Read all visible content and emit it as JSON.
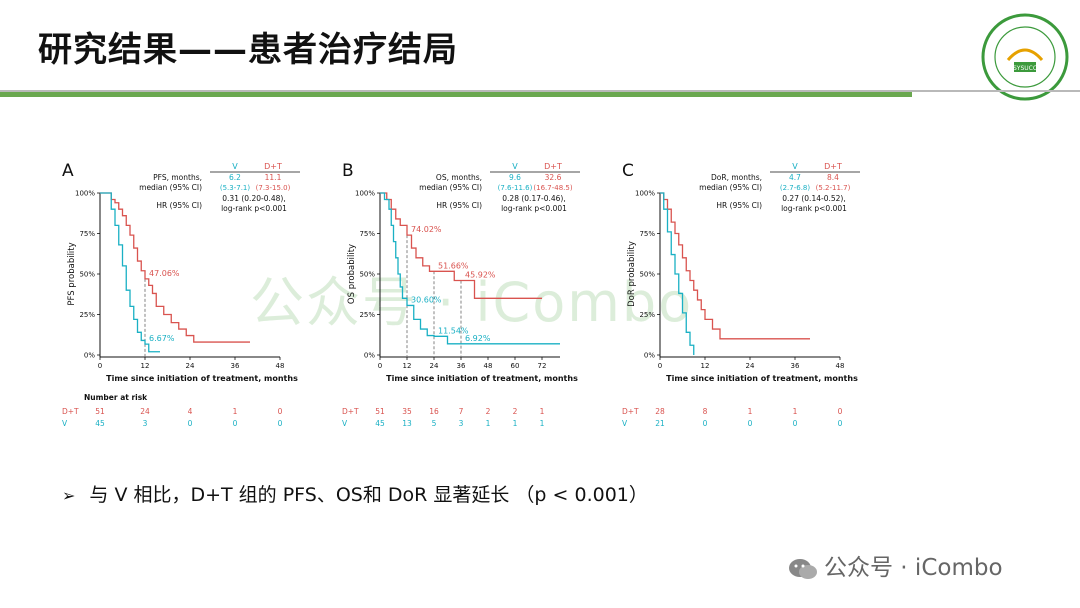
{
  "header": {
    "title": "研究结果——患者治疗结局"
  },
  "logo": {
    "text_top": "中山大学附属肿瘤医院",
    "text_mid": "SYSUCC",
    "text_bottom": "SUN YAT-SEN UNIVERSITY CANCER CENTER"
  },
  "watermark": {
    "center": "公众号 · iCombo",
    "footer": "公众号 · iCombo"
  },
  "bullet": {
    "marker": "➢",
    "text": "与 V 相比，D+T 组的 PFS、OS和 DoR 显著延长 （p < 0.001）"
  },
  "colors": {
    "dt": "#d9534f",
    "v": "#1ab0c4",
    "green": "#6aa84f"
  },
  "chart_data": [
    {
      "type": "line",
      "panel_letter": "A",
      "ylabel": "PFS probability",
      "xlabel": "Time since initiation of treatment, months",
      "xticks": [
        0,
        12,
        24,
        36,
        48
      ],
      "xlim": [
        0,
        48
      ],
      "yticks": [
        "0%",
        "25%",
        "50%",
        "75%",
        "100%"
      ],
      "ylim": [
        0,
        1
      ],
      "legend_table": {
        "headers": [
          "V",
          "D+T"
        ],
        "rows": [
          {
            "label1": "PFS, months,",
            "label2": "median (95% CI)",
            "v": "6.2",
            "v_ci": "(5.3-7.1)",
            "dt": "11.1",
            "dt_ci": "(7.3-15.0)"
          }
        ],
        "hr_label": "HR (95% CI)",
        "hr_value": "0.31 (0.20-0.48),",
        "logrank": "log-rank p<0.001"
      },
      "annotations": [
        {
          "text": "47.06%",
          "series": "D+T",
          "x": 12,
          "y": 0.47
        },
        {
          "text": "6.67%",
          "series": "V",
          "x": 12,
          "y": 0.067
        }
      ],
      "series": [
        {
          "name": "D+T",
          "step": [
            [
              0,
              1
            ],
            [
              2,
              1
            ],
            [
              3,
              0.96
            ],
            [
              4,
              0.94
            ],
            [
              5,
              0.9
            ],
            [
              6,
              0.86
            ],
            [
              7,
              0.8
            ],
            [
              8,
              0.74
            ],
            [
              9,
              0.66
            ],
            [
              10,
              0.58
            ],
            [
              11,
              0.52
            ],
            [
              12,
              0.47
            ],
            [
              13,
              0.43
            ],
            [
              14,
              0.38
            ],
            [
              15,
              0.3
            ],
            [
              17,
              0.25
            ],
            [
              19,
              0.2
            ],
            [
              21,
              0.16
            ],
            [
              23,
              0.12
            ],
            [
              25,
              0.08
            ],
            [
              30,
              0.08
            ],
            [
              40,
              0.08
            ]
          ]
        },
        {
          "name": "V",
          "step": [
            [
              0,
              1
            ],
            [
              2,
              1
            ],
            [
              3,
              0.9
            ],
            [
              4,
              0.8
            ],
            [
              5,
              0.68
            ],
            [
              6,
              0.55
            ],
            [
              7,
              0.4
            ],
            [
              8,
              0.3
            ],
            [
              9,
              0.22
            ],
            [
              10,
              0.14
            ],
            [
              11,
              0.09
            ],
            [
              12,
              0.067
            ],
            [
              13,
              0.02
            ],
            [
              16,
              0.02
            ]
          ]
        }
      ],
      "risk_table": {
        "title": "Number at risk",
        "x": [
          0,
          12,
          24,
          36,
          48
        ],
        "rows": [
          {
            "label": "D+T",
            "values": [
              "51",
              "24",
              "4",
              "1",
              "0"
            ]
          },
          {
            "label": "V",
            "values": [
              "45",
              "3",
              "0",
              "0",
              "0"
            ]
          }
        ]
      }
    },
    {
      "type": "line",
      "panel_letter": "B",
      "ylabel": "OS probability",
      "xlabel": "Time since initiation of treatment, months",
      "xticks": [
        0,
        12,
        24,
        36,
        48,
        60,
        72
      ],
      "xlim": [
        0,
        80
      ],
      "yticks": [
        "0%",
        "25%",
        "50%",
        "75%",
        "100%"
      ],
      "ylim": [
        0,
        1
      ],
      "legend_table": {
        "headers": [
          "V",
          "D+T"
        ],
        "rows": [
          {
            "label1": "OS, months,",
            "label2": "median (95% CI)",
            "v": "9.6",
            "v_ci": "(7.6-11.6)",
            "dt": "32.6",
            "dt_ci": "(16.7-48.5)"
          }
        ],
        "hr_label": "HR (95% CI)",
        "hr_value": "0.28 (0.17-0.46),",
        "logrank": "log-rank p<0.001"
      },
      "annotations": [
        {
          "text": "74.02%",
          "series": "D+T",
          "x": 12,
          "y": 0.74
        },
        {
          "text": "51.66%",
          "series": "D+T",
          "x": 24,
          "y": 0.5166
        },
        {
          "text": "45.92%",
          "series": "D+T",
          "x": 36,
          "y": 0.4592
        },
        {
          "text": "30.60%",
          "series": "V",
          "x": 12,
          "y": 0.306
        },
        {
          "text": "11.54%",
          "series": "V",
          "x": 24,
          "y": 0.1154
        },
        {
          "text": "6.92%",
          "series": "V",
          "x": 36,
          "y": 0.0692
        }
      ],
      "series": [
        {
          "name": "D+T",
          "step": [
            [
              0,
              1
            ],
            [
              3,
              0.96
            ],
            [
              5,
              0.9
            ],
            [
              7,
              0.84
            ],
            [
              9,
              0.8
            ],
            [
              12,
              0.74
            ],
            [
              14,
              0.66
            ],
            [
              16,
              0.6
            ],
            [
              19,
              0.55
            ],
            [
              22,
              0.5166
            ],
            [
              30,
              0.5166
            ],
            [
              33,
              0.46
            ],
            [
              40,
              0.46
            ],
            [
              42,
              0.35
            ],
            [
              70,
              0.35
            ],
            [
              72,
              0.35
            ]
          ]
        },
        {
          "name": "V",
          "step": [
            [
              0,
              1
            ],
            [
              2,
              0.96
            ],
            [
              4,
              0.9
            ],
            [
              5,
              0.8
            ],
            [
              6,
              0.7
            ],
            [
              7,
              0.6
            ],
            [
              8,
              0.5
            ],
            [
              9,
              0.42
            ],
            [
              10,
              0.35
            ],
            [
              12,
              0.306
            ],
            [
              15,
              0.22
            ],
            [
              18,
              0.16
            ],
            [
              21,
              0.12
            ],
            [
              24,
              0.1154
            ],
            [
              30,
              0.0692
            ],
            [
              80,
              0.0692
            ]
          ]
        }
      ],
      "risk_table": {
        "title": "",
        "x": [
          0,
          12,
          24,
          36,
          48,
          60,
          72
        ],
        "rows": [
          {
            "label": "D+T",
            "values": [
              "51",
              "35",
              "16",
              "7",
              "2",
              "2",
              "1"
            ]
          },
          {
            "label": "V",
            "values": [
              "45",
              "13",
              "5",
              "3",
              "1",
              "1",
              "1"
            ]
          }
        ]
      }
    },
    {
      "type": "line",
      "panel_letter": "C",
      "ylabel": "DoR probability",
      "xlabel": "Time since initiation of treatment, months",
      "xticks": [
        0,
        12,
        24,
        36,
        48
      ],
      "xlim": [
        0,
        48
      ],
      "yticks": [
        "0%",
        "25%",
        "50%",
        "75%",
        "100%"
      ],
      "ylim": [
        0,
        1
      ],
      "legend_table": {
        "headers": [
          "V",
          "D+T"
        ],
        "rows": [
          {
            "label1": "DoR, months,",
            "label2": "median (95% CI)",
            "v": "4.7",
            "v_ci": "(2.7-6.8)",
            "dt": "8.4",
            "dt_ci": "(5.2-11.7)"
          }
        ],
        "hr_label": "HR (95% CI)",
        "hr_value": "0.27 (0.14-0.52),",
        "logrank": "log-rank p<0.001"
      },
      "annotations": [],
      "series": [
        {
          "name": "D+T",
          "step": [
            [
              0,
              1
            ],
            [
              1,
              0.96
            ],
            [
              2,
              0.9
            ],
            [
              3,
              0.82
            ],
            [
              4,
              0.75
            ],
            [
              5,
              0.68
            ],
            [
              6,
              0.6
            ],
            [
              7,
              0.52
            ],
            [
              8,
              0.46
            ],
            [
              9,
              0.4
            ],
            [
              10,
              0.34
            ],
            [
              11,
              0.28
            ],
            [
              12,
              0.22
            ],
            [
              14,
              0.16
            ],
            [
              16,
              0.1
            ],
            [
              20,
              0.1
            ],
            [
              40,
              0.1
            ]
          ]
        },
        {
          "name": "V",
          "step": [
            [
              0,
              1
            ],
            [
              1,
              0.9
            ],
            [
              2,
              0.76
            ],
            [
              3,
              0.62
            ],
            [
              4,
              0.5
            ],
            [
              5,
              0.38
            ],
            [
              6,
              0.26
            ],
            [
              7,
              0.14
            ],
            [
              8,
              0.06
            ],
            [
              9,
              0.0
            ]
          ]
        }
      ],
      "risk_table": {
        "title": "",
        "x": [
          0,
          12,
          24,
          36,
          48
        ],
        "rows": [
          {
            "label": "D+T",
            "values": [
              "28",
              "8",
              "1",
              "1",
              "0"
            ]
          },
          {
            "label": "V",
            "values": [
              "21",
              "0",
              "0",
              "0",
              "0"
            ]
          }
        ]
      }
    }
  ]
}
